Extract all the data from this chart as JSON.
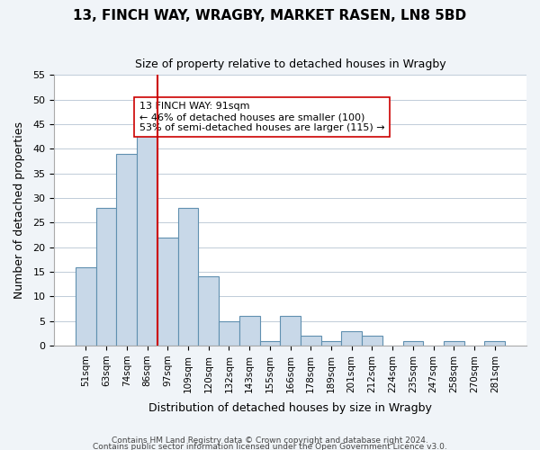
{
  "title": "13, FINCH WAY, WRAGBY, MARKET RASEN, LN8 5BD",
  "subtitle": "Size of property relative to detached houses in Wragby",
  "xlabel": "Distribution of detached houses by size in Wragby",
  "ylabel": "Number of detached properties",
  "bar_labels": [
    "51sqm",
    "63sqm",
    "74sqm",
    "86sqm",
    "97sqm",
    "109sqm",
    "120sqm",
    "132sqm",
    "143sqm",
    "155sqm",
    "166sqm",
    "178sqm",
    "189sqm",
    "201sqm",
    "212sqm",
    "224sqm",
    "235sqm",
    "247sqm",
    "258sqm",
    "270sqm",
    "281sqm"
  ],
  "bar_values": [
    16,
    28,
    39,
    43,
    22,
    28,
    14,
    5,
    6,
    1,
    6,
    2,
    1,
    3,
    2,
    0,
    1,
    0,
    1,
    0,
    1
  ],
  "bar_color": "#c8d8e8",
  "bar_edge_color": "#6090b0",
  "vline_x": 3.5,
  "vline_color": "#cc0000",
  "ylim": [
    0,
    55
  ],
  "yticks": [
    0,
    5,
    10,
    15,
    20,
    25,
    30,
    35,
    40,
    45,
    50,
    55
  ],
  "annotation_line1": "13 FINCH WAY: 91sqm",
  "annotation_line2": "← 46% of detached houses are smaller (100)",
  "annotation_line3": "53% of semi-detached houses are larger (115) →",
  "annotation_box_color": "#ffffff",
  "annotation_box_edge": "#cc0000",
  "footer1": "Contains HM Land Registry data © Crown copyright and database right 2024.",
  "footer2": "Contains public sector information licensed under the Open Government Licence v3.0.",
  "background_color": "#f0f4f8",
  "plot_background": "#ffffff"
}
